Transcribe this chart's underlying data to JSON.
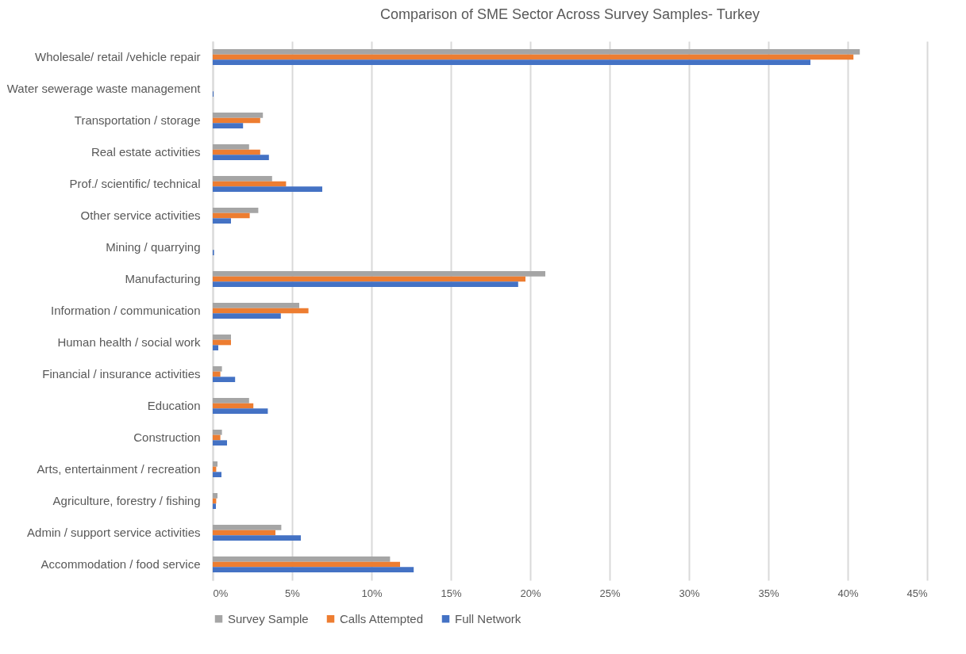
{
  "chart_data": {
    "type": "bar",
    "orientation": "horizontal",
    "title": "Comparison of SME Sector Across Survey Samples- Turkey",
    "categories": [
      "Wholesale/ retail /vehicle repair",
      "Water sewerage waste management",
      "Transportation / storage",
      "Real estate activities",
      "Prof./ scientific/ technical",
      "Other service activities",
      "Mining / quarrying",
      "Manufacturing",
      "Information / communication",
      "Human health / social work",
      "Financial / insurance activities",
      "Education",
      "Construction",
      "Arts, entertainment / recreation",
      "Agriculture, forestry / fishing",
      "Admin / support service activities",
      "Accommodation / food service"
    ],
    "series": [
      {
        "name": "Survey Sample",
        "color": "#a5a5a5",
        "values": [
          40.76,
          null,
          3.16,
          2.29,
          3.74,
          2.87,
          null,
          20.95,
          5.45,
          1.15,
          0.58,
          2.29,
          0.58,
          0.3,
          0.3,
          4.32,
          11.17
        ]
      },
      {
        "name": "Calls Attempted",
        "color": "#ed7d31",
        "values": [
          40.36,
          null,
          2.99,
          2.99,
          4.62,
          2.33,
          null,
          19.7,
          6.03,
          1.15,
          0.48,
          2.56,
          0.48,
          0.22,
          0.22,
          3.95,
          11.8
        ]
      },
      {
        "name": "Full Network",
        "color": "#4472c4",
        "values": [
          37.65,
          0.05,
          1.91,
          3.54,
          6.9,
          1.15,
          0.08,
          19.24,
          4.29,
          0.35,
          1.41,
          3.47,
          0.9,
          0.55,
          0.2,
          5.55,
          12.66
        ]
      }
    ],
    "xlim": [
      0,
      45
    ],
    "xticks": [
      {
        "value": 0,
        "label": "0%"
      },
      {
        "value": 5,
        "label": "5%"
      },
      {
        "value": 10,
        "label": "10%"
      },
      {
        "value": 15,
        "label": "15%"
      },
      {
        "value": 20,
        "label": "20%"
      },
      {
        "value": 25,
        "label": "25%"
      },
      {
        "value": 30,
        "label": "30%"
      },
      {
        "value": 35,
        "label": "35%"
      },
      {
        "value": 40,
        "label": "40%"
      },
      {
        "value": 45,
        "label": "45%"
      }
    ],
    "grid": "x",
    "legend": "bottom"
  }
}
